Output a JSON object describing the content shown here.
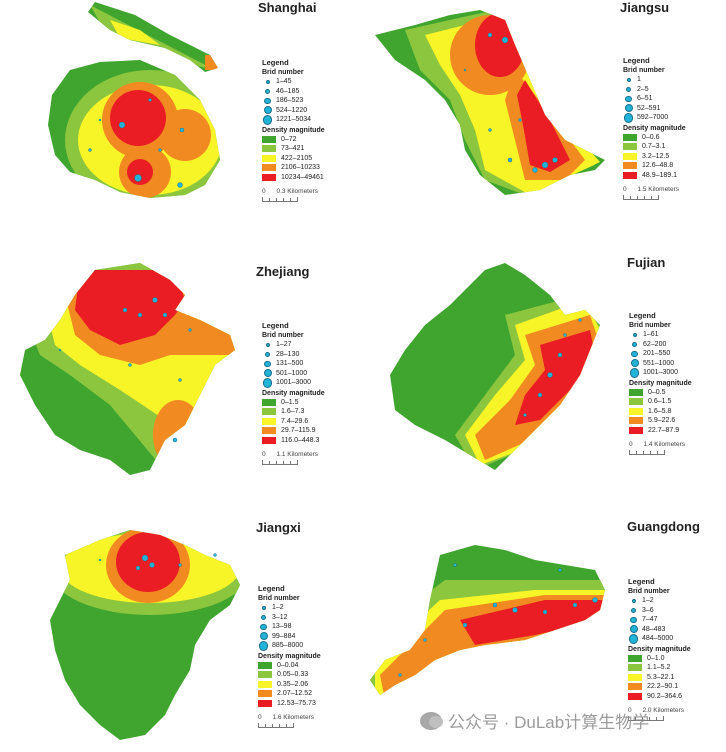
{
  "palette": {
    "dark_green": "#3fa52e",
    "light_green": "#8cc63e",
    "yellow": "#f7f427",
    "orange": "#f18a21",
    "red": "#ea1c24",
    "dot": "#22b3d8"
  },
  "panels": [
    {
      "title": "Shanghai",
      "legend": {
        "heading": "Legend",
        "bird_title": "Brid number",
        "bird": [
          "1–45",
          "46–185",
          "186–523",
          "524–1220",
          "1221–5034"
        ],
        "density_title": "Density magnitude",
        "density": [
          "0–72",
          "73–421",
          "422–2105",
          "2106–10233",
          "10234–49461"
        ],
        "scale": "0",
        "scale_value": "0.3 Kilometers"
      }
    },
    {
      "title": "Jiangsu",
      "legend": {
        "heading": "Legend",
        "bird_title": "Brid number",
        "bird": [
          "1",
          "2–5",
          "6–51",
          "52–591",
          "592–7000"
        ],
        "density_title": "Density magnitude",
        "density": [
          "0–0.6",
          "0.7–3.1",
          "3.2–12.5",
          "12.6–48.8",
          "48.9–189.1"
        ],
        "scale": "0",
        "scale_value": "1.5 Kilometers"
      }
    },
    {
      "title": "Zhejiang",
      "legend": {
        "heading": "Legend",
        "bird_title": "Brid number",
        "bird": [
          "1–27",
          "28–130",
          "131–500",
          "501–1000",
          "1001–3000"
        ],
        "density_title": "Density magnitude",
        "density": [
          "0–1.5",
          "1.6–7.3",
          "7.4–29.6",
          "29.7–115.9",
          "116.0–448.3"
        ],
        "scale": "0",
        "scale_value": "1.1 Kilometers"
      }
    },
    {
      "title": "Fujian",
      "legend": {
        "heading": "Legend",
        "bird_title": "Brid number",
        "bird": [
          "1–61",
          "62–200",
          "201–550",
          "551–1000",
          "1001–3000"
        ],
        "density_title": "Density magnitude",
        "density": [
          "0–0.5",
          "0.6–1.5",
          "1.6–5.8",
          "5.9–22.6",
          "22.7–87.9"
        ],
        "scale": "0",
        "scale_value": "1.4 Kilometers"
      }
    },
    {
      "title": "Jiangxi",
      "legend": {
        "heading": "Legend",
        "bird_title": "Brid number",
        "bird": [
          "1–2",
          "3–12",
          "13–98",
          "99–884",
          "885–8000"
        ],
        "density_title": "Density magnitude",
        "density": [
          "0–0.04",
          "0.05–0.33",
          "0.35–2.06",
          "2.07–12.52",
          "12.53–75.73"
        ],
        "scale": "0",
        "scale_value": "1.6 Kilometers"
      }
    },
    {
      "title": "Guangdong",
      "legend": {
        "heading": "Legend",
        "bird_title": "Brid number",
        "bird": [
          "1–2",
          "3–6",
          "7–47",
          "48–483",
          "484–5000"
        ],
        "density_title": "Density magnitude",
        "density": [
          "0–1.0",
          "1.1–5.2",
          "5.3–22.1",
          "22.2–90.1",
          "90.2–364.6"
        ],
        "scale": "0",
        "scale_value": "2.0 Kilometers"
      }
    }
  ],
  "watermark": "公众号 · DuLab计算生物学"
}
